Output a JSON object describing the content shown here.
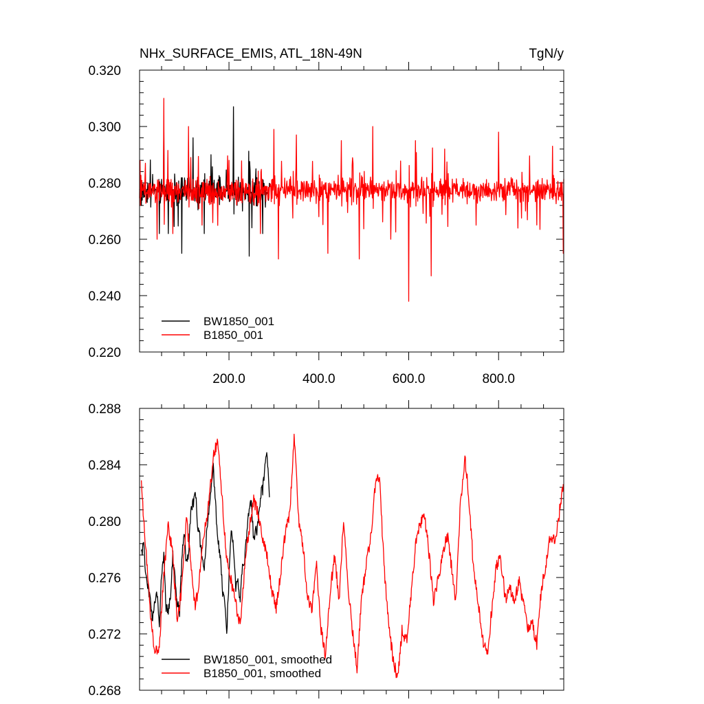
{
  "chart_data": [
    {
      "type": "line",
      "title": "NHx_SURFACE_EMIS, ATL_18N-49N",
      "units": "TgN/y",
      "xlabel": "",
      "ylabel": "",
      "xlim": [
        1,
        945
      ],
      "ylim": [
        0.22,
        0.32
      ],
      "grid": false,
      "legend_position": "bottom-left",
      "x_ticks": [
        200,
        400,
        600,
        800
      ],
      "x_tick_labels": [
        "200.0",
        "400.0",
        "600.0",
        "800.0"
      ],
      "y_ticks": [
        0.22,
        0.24,
        0.26,
        0.28,
        0.3,
        0.32
      ],
      "y_tick_labels": [
        "0.220",
        "0.240",
        "0.260",
        "0.280",
        "0.300",
        "0.320"
      ],
      "series": [
        {
          "name": "BW1850_001",
          "color": "#000000",
          "x_range": [
            1,
            290
          ],
          "keypoints": [
            [
              5,
              0.272
            ],
            [
              30,
              0.283
            ],
            [
              45,
              0.262
            ],
            [
              55,
              0.301
            ],
            [
              65,
              0.262
            ],
            [
              80,
              0.28
            ],
            [
              95,
              0.255
            ],
            [
              120,
              0.296
            ],
            [
              145,
              0.262
            ],
            [
              160,
              0.29
            ],
            [
              190,
              0.275
            ],
            [
              210,
              0.307
            ],
            [
              230,
              0.27
            ],
            [
              245,
              0.254
            ],
            [
              260,
              0.285
            ],
            [
              275,
              0.262
            ],
            [
              290,
              0.28
            ]
          ]
        },
        {
          "name": "B1850_001",
          "color": "#ff0000",
          "x_range": [
            1,
            945
          ],
          "keypoints": [
            [
              5,
              0.275
            ],
            [
              40,
              0.26
            ],
            [
              55,
              0.31
            ],
            [
              75,
              0.262
            ],
            [
              110,
              0.3
            ],
            [
              140,
              0.265
            ],
            [
              200,
              0.288
            ],
            [
              270,
              0.262
            ],
            [
              300,
              0.299
            ],
            [
              310,
              0.253
            ],
            [
              350,
              0.297
            ],
            [
              400,
              0.268
            ],
            [
              420,
              0.255
            ],
            [
              450,
              0.295
            ],
            [
              490,
              0.253
            ],
            [
              520,
              0.3
            ],
            [
              560,
              0.26
            ],
            [
              600,
              0.238
            ],
            [
              615,
              0.295
            ],
            [
              650,
              0.247
            ],
            [
              680,
              0.292
            ],
            [
              750,
              0.265
            ],
            [
              800,
              0.298
            ],
            [
              860,
              0.27
            ],
            [
              920,
              0.293
            ],
            [
              944,
              0.255
            ]
          ]
        }
      ]
    },
    {
      "type": "line",
      "title": "",
      "xlabel": "",
      "ylabel": "",
      "xlim": [
        1,
        945
      ],
      "ylim": [
        0.268,
        0.288
      ],
      "grid": false,
      "legend_position": "bottom-left",
      "x_ticks": [
        200,
        400,
        600,
        800
      ],
      "x_tick_labels": [],
      "y_ticks": [
        0.268,
        0.272,
        0.276,
        0.28,
        0.284,
        0.288
      ],
      "y_tick_labels": [
        "0.268",
        "0.272",
        "0.276",
        "0.280",
        "0.284",
        "0.288"
      ],
      "series": [
        {
          "name": "BW1850_001, smoothed",
          "color": "#000000",
          "x": [
            5,
            10,
            15,
            20,
            25,
            30,
            35,
            40,
            45,
            50,
            55,
            60,
            65,
            70,
            75,
            80,
            85,
            90,
            95,
            100,
            105,
            110,
            115,
            120,
            125,
            130,
            135,
            140,
            145,
            150,
            155,
            160,
            165,
            170,
            175,
            180,
            185,
            190,
            195,
            200,
            205,
            210,
            215,
            220,
            225,
            230,
            235,
            240,
            245,
            250,
            255,
            260,
            265,
            270,
            275,
            280,
            285,
            290
          ],
          "values": [
            0.2775,
            0.2783,
            0.2762,
            0.2753,
            0.2745,
            0.273,
            0.2742,
            0.2748,
            0.2725,
            0.2762,
            0.2778,
            0.274,
            0.2735,
            0.2748,
            0.2775,
            0.2757,
            0.2742,
            0.2735,
            0.2772,
            0.2792,
            0.2772,
            0.2778,
            0.2805,
            0.2812,
            0.2823,
            0.2798,
            0.2788,
            0.2775,
            0.2765,
            0.2793,
            0.2805,
            0.2822,
            0.2838,
            0.2812,
            0.2785,
            0.2778,
            0.2753,
            0.2743,
            0.2721,
            0.276,
            0.2793,
            0.2782,
            0.2752,
            0.2755,
            0.2743,
            0.2767,
            0.2773,
            0.2792,
            0.2808,
            0.2812,
            0.2785,
            0.2792,
            0.2798,
            0.2818,
            0.2822,
            0.2838,
            0.2846,
            0.2815
          ]
        },
        {
          "name": "B1850_001, smoothed",
          "color": "#ff0000",
          "x": [
            5,
            15,
            25,
            35,
            45,
            55,
            65,
            75,
            85,
            95,
            105,
            115,
            125,
            135,
            145,
            155,
            165,
            175,
            185,
            195,
            205,
            215,
            225,
            235,
            245,
            255,
            265,
            275,
            285,
            295,
            305,
            315,
            325,
            335,
            345,
            355,
            365,
            375,
            385,
            395,
            405,
            415,
            425,
            435,
            445,
            455,
            465,
            475,
            485,
            495,
            505,
            515,
            525,
            535,
            545,
            555,
            565,
            575,
            585,
            595,
            605,
            615,
            625,
            635,
            645,
            655,
            665,
            675,
            685,
            695,
            705,
            715,
            725,
            735,
            745,
            755,
            765,
            775,
            785,
            795,
            805,
            815,
            825,
            835,
            845,
            855,
            865,
            875,
            885,
            895,
            905,
            915,
            925,
            935,
            944
          ],
          "values": [
            0.2825,
            0.278,
            0.2735,
            0.2705,
            0.2712,
            0.2762,
            0.2798,
            0.2775,
            0.2728,
            0.2752,
            0.2802,
            0.2772,
            0.2738,
            0.2762,
            0.2792,
            0.2812,
            0.2845,
            0.2858,
            0.2815,
            0.2772,
            0.2758,
            0.2742,
            0.2725,
            0.2768,
            0.2795,
            0.2815,
            0.2805,
            0.2788,
            0.2775,
            0.2752,
            0.2738,
            0.2762,
            0.2792,
            0.2805,
            0.2861,
            0.2802,
            0.2782,
            0.2746,
            0.2738,
            0.2768,
            0.2722,
            0.2705,
            0.2749,
            0.2775,
            0.2745,
            0.2802,
            0.2752,
            0.2722,
            0.2695,
            0.2745,
            0.2768,
            0.2788,
            0.2823,
            0.2833,
            0.2768,
            0.2728,
            0.2702,
            0.2688,
            0.2722,
            0.2715,
            0.2745,
            0.2782,
            0.2798,
            0.2805,
            0.2778,
            0.2742,
            0.2758,
            0.2773,
            0.2792,
            0.2768,
            0.2743,
            0.2812,
            0.2846,
            0.2812,
            0.2762,
            0.2742,
            0.2715,
            0.2705,
            0.2738,
            0.2768,
            0.2773,
            0.2745,
            0.2752,
            0.2742,
            0.2758,
            0.2742,
            0.2722,
            0.2728,
            0.2712,
            0.2752,
            0.2768,
            0.2791,
            0.2785,
            0.2805,
            0.2828
          ]
        }
      ]
    }
  ]
}
